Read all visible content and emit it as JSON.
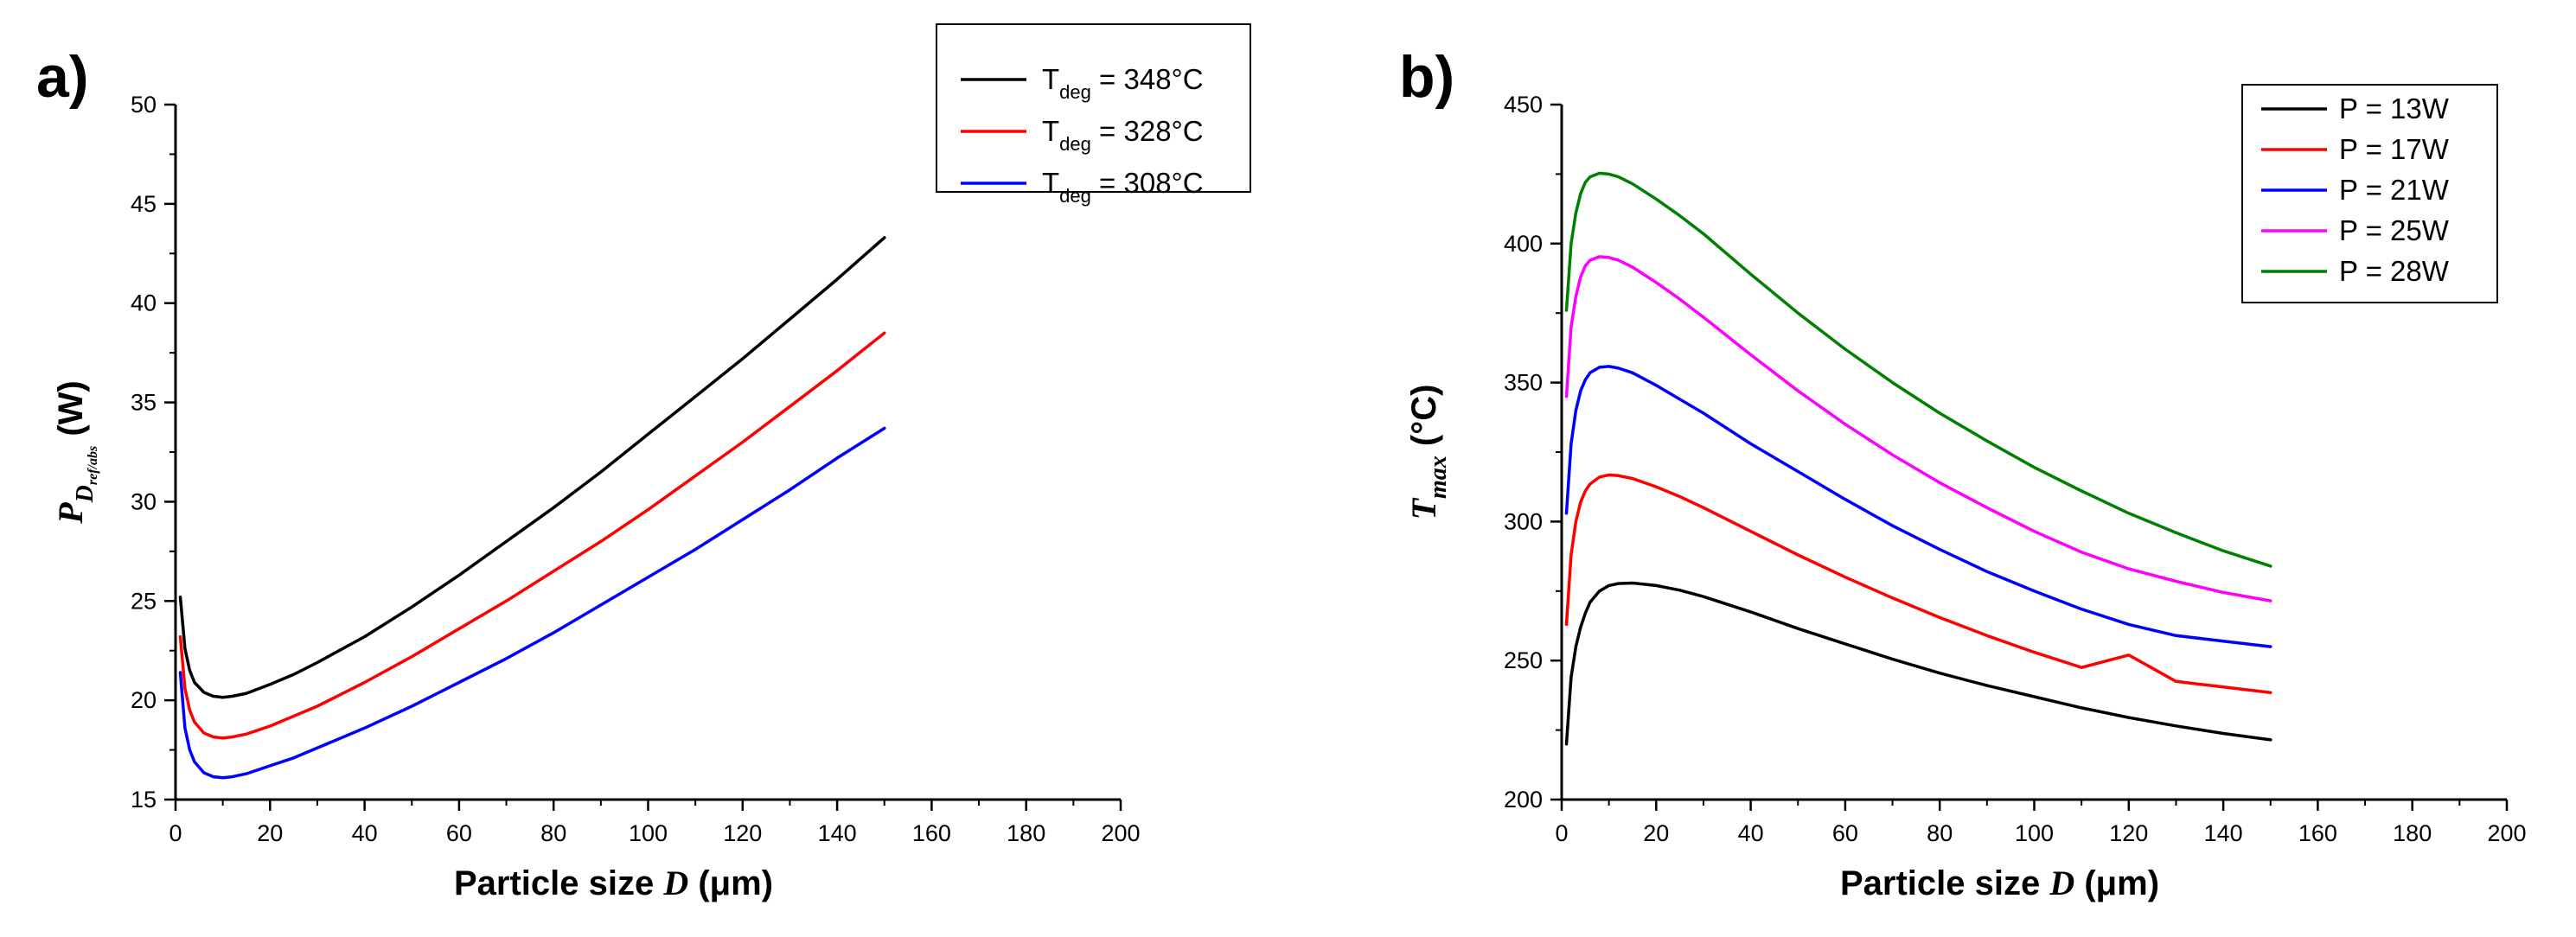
{
  "chart_data": [
    {
      "panel_label": "a)",
      "type": "line",
      "title": "",
      "xlabel": {
        "prefix": "Particle size ",
        "var": "D",
        "unit": " (μm)"
      },
      "ylabel": {
        "var": "P",
        "sub": "D",
        "subsub": "ref/abs",
        "unit": " (W)"
      },
      "xlim": [
        0,
        200
      ],
      "ylim": [
        15,
        50
      ],
      "xticks": [
        0,
        20,
        40,
        60,
        80,
        100,
        120,
        140,
        160,
        180,
        200
      ],
      "yticks": [
        15,
        20,
        25,
        30,
        35,
        40,
        45,
        50
      ],
      "legend_position": "top-right",
      "series": [
        {
          "name": "T_deg = 348°C",
          "legend": {
            "base": "T",
            "sub": "deg",
            "rest": " = 348°C"
          },
          "color": "#000000",
          "x": [
            1,
            2,
            3,
            4,
            6,
            8,
            10,
            12,
            15,
            20,
            25,
            30,
            40,
            50,
            60,
            70,
            80,
            90,
            100,
            110,
            120,
            130,
            140,
            150
          ],
          "y": [
            25.2,
            22.6,
            21.5,
            20.9,
            20.4,
            20.2,
            20.15,
            20.2,
            20.35,
            20.8,
            21.3,
            21.9,
            23.2,
            24.7,
            26.3,
            28.0,
            29.7,
            31.5,
            33.4,
            35.3,
            37.2,
            39.2,
            41.2,
            43.3
          ]
        },
        {
          "name": "T_deg = 328°C",
          "legend": {
            "base": "T",
            "sub": "deg",
            "rest": " = 328°C"
          },
          "color": "#ff0000",
          "x": [
            1,
            2,
            3,
            4,
            6,
            8,
            10,
            12,
            15,
            20,
            25,
            30,
            40,
            50,
            60,
            70,
            80,
            90,
            100,
            110,
            120,
            130,
            140,
            150
          ],
          "y": [
            23.2,
            20.6,
            19.5,
            18.9,
            18.35,
            18.15,
            18.1,
            18.15,
            18.3,
            18.7,
            19.2,
            19.7,
            20.9,
            22.2,
            23.6,
            25.0,
            26.5,
            28.0,
            29.6,
            31.3,
            33.0,
            34.8,
            36.6,
            38.5
          ]
        },
        {
          "name": "T_deg = 308°C",
          "legend": {
            "base": "T",
            "sub": "deg",
            "rest": " = 308°C"
          },
          "color": "#0000ff",
          "x": [
            1,
            2,
            3,
            4,
            6,
            8,
            10,
            12,
            15,
            20,
            25,
            30,
            40,
            50,
            60,
            70,
            80,
            90,
            100,
            110,
            120,
            130,
            140,
            150
          ],
          "y": [
            21.4,
            18.6,
            17.5,
            16.9,
            16.35,
            16.15,
            16.1,
            16.15,
            16.3,
            16.7,
            17.1,
            17.6,
            18.6,
            19.7,
            20.9,
            22.1,
            23.4,
            24.8,
            26.2,
            27.6,
            29.1,
            30.6,
            32.2,
            33.7
          ]
        }
      ]
    },
    {
      "panel_label": "b)",
      "type": "line",
      "title": "",
      "xlabel": {
        "prefix": "Particle size ",
        "var": "D",
        "unit": " (μm)"
      },
      "ylabel": {
        "var": "T",
        "sub": "max",
        "unit": " (°C)"
      },
      "xlim": [
        0,
        200
      ],
      "ylim": [
        200,
        450
      ],
      "xticks": [
        0,
        20,
        40,
        60,
        80,
        100,
        120,
        140,
        160,
        180,
        200
      ],
      "yticks": [
        200,
        250,
        300,
        350,
        400,
        450
      ],
      "legend_position": "top-right",
      "series": [
        {
          "name": "P = 13W",
          "legend": {
            "base": "P = 13W",
            "sub": "",
            "rest": ""
          },
          "color": "#000000",
          "x": [
            1,
            2,
            3,
            4,
            5,
            6,
            8,
            10,
            12,
            15,
            20,
            25,
            30,
            40,
            50,
            60,
            70,
            80,
            90,
            100,
            110,
            120,
            130,
            140,
            150
          ],
          "y": [
            220,
            244,
            255,
            262,
            267,
            271,
            275,
            277,
            277.7,
            277.9,
            277,
            275.3,
            273,
            267.5,
            261.5,
            256,
            250.5,
            245.5,
            241,
            237,
            233,
            229.5,
            226.5,
            223.8,
            221.5
          ]
        },
        {
          "name": "P = 17W",
          "legend": {
            "base": "P = 17W",
            "sub": "",
            "rest": ""
          },
          "color": "#ff0000",
          "x": [
            1,
            2,
            3,
            4,
            5,
            6,
            8,
            10,
            12,
            15,
            20,
            25,
            30,
            40,
            50,
            60,
            70,
            80,
            90,
            100,
            110,
            120,
            130,
            140,
            150
          ],
          "y": [
            263,
            288,
            300,
            307,
            311,
            313.5,
            316,
            316.8,
            316.5,
            315.5,
            312.5,
            309,
            305,
            296.5,
            288,
            280,
            272.5,
            265.5,
            259,
            253,
            247.5,
            252,
            242.5,
            240.5,
            238.5
          ]
        },
        {
          "name": "P = 21W",
          "legend": {
            "base": "P = 21W",
            "sub": "",
            "rest": ""
          },
          "color": "#0000ff",
          "x": [
            1,
            2,
            3,
            4,
            5,
            6,
            8,
            10,
            12,
            15,
            20,
            25,
            30,
            40,
            50,
            60,
            70,
            80,
            90,
            100,
            110,
            120,
            130,
            140,
            150
          ],
          "y": [
            303,
            328,
            340,
            347,
            351,
            353.5,
            355.5,
            355.8,
            355.2,
            353.5,
            349,
            344,
            339,
            328,
            318,
            308,
            298.5,
            290,
            282,
            275,
            268.5,
            263,
            259,
            257,
            255
          ]
        },
        {
          "name": "P = 25W",
          "legend": {
            "base": "P = 25W",
            "sub": "",
            "rest": ""
          },
          "color": "#ff00ff",
          "x": [
            1,
            2,
            3,
            4,
            5,
            6,
            8,
            10,
            12,
            15,
            20,
            25,
            30,
            40,
            50,
            60,
            70,
            80,
            90,
            100,
            110,
            120,
            130,
            140,
            150
          ],
          "y": [
            345,
            370,
            381,
            388,
            392,
            394,
            395.3,
            395,
            394,
            391.5,
            386,
            380,
            373.5,
            360,
            347,
            335,
            324,
            314,
            305,
            296.5,
            289,
            283,
            278.5,
            274.5,
            271.5
          ]
        },
        {
          "name": "P = 28W",
          "legend": {
            "base": "P = 28W",
            "sub": "",
            "rest": ""
          },
          "color": "#008000",
          "x": [
            1,
            2,
            3,
            4,
            5,
            6,
            8,
            10,
            12,
            15,
            20,
            25,
            30,
            40,
            50,
            60,
            70,
            80,
            90,
            100,
            110,
            120,
            130,
            140,
            150
          ],
          "y": [
            376,
            400,
            411,
            418,
            422,
            424,
            425.3,
            425,
            424,
            421.5,
            416,
            410,
            403.5,
            389,
            375,
            362,
            350,
            339,
            329,
            319.5,
            311,
            303,
            296,
            289.5,
            284
          ]
        }
      ]
    }
  ]
}
